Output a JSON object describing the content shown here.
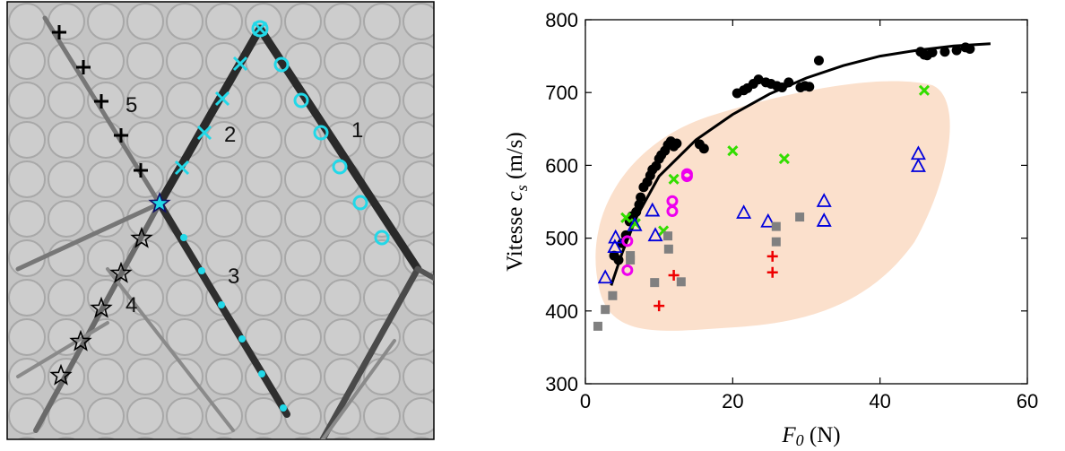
{
  "image_panel": {
    "labels": [
      "1",
      "2",
      "3",
      "4",
      "5"
    ]
  },
  "chart_data": {
    "type": "scatter",
    "y_label": {
      "text": "Vitesse ",
      "var": "c",
      "sub": "s",
      "unit": " (m/s)"
    },
    "x_label": {
      "var": "F",
      "sub": "0",
      "unit": " (N)"
    },
    "xlim": [
      0,
      60
    ],
    "xticks": [
      0,
      20,
      40,
      60
    ],
    "ylim": [
      300,
      800
    ],
    "yticks": [
      300,
      400,
      500,
      600,
      700,
      800
    ],
    "series": [
      {
        "marker": "line",
        "color": "#000000",
        "x": [
          3.5,
          5,
          7,
          10,
          15,
          20,
          25,
          30,
          35,
          40,
          45,
          50,
          55
        ],
        "values": [
          435,
          480,
          530,
          585,
          635,
          670,
          698,
          720,
          737,
          750,
          758,
          764,
          767
        ]
      },
      {
        "marker": "dot",
        "color": "#000000",
        "x": [
          3.9,
          4.5,
          5.0,
          5.5,
          6.0,
          6.3,
          6.9,
          7.3,
          7.5,
          7.9,
          8.4,
          8.8,
          9.1,
          9.6,
          10.0,
          10.3,
          10.8,
          11.2,
          11.6,
          12.0,
          12.4,
          15.5,
          16.1,
          20.6,
          21.5,
          22.0,
          22.8,
          23.5,
          24.5,
          25.2,
          26.0,
          26.7,
          27.6,
          29.2,
          29.8,
          30.4,
          31.7,
          45.5,
          46.0,
          46.4,
          47.1,
          48.8,
          50.4,
          51.6,
          52.2
        ],
        "values": [
          476,
          470,
          493,
          504,
          523,
          530,
          536,
          546,
          556,
          570,
          577,
          586,
          594,
          599,
          609,
          614,
          620,
          628,
          633,
          626,
          630,
          629,
          623,
          699,
          703,
          706,
          712,
          718,
          714,
          712,
          709,
          707,
          714,
          707,
          709,
          708,
          744,
          756,
          752,
          751,
          755,
          756,
          758,
          762,
          760
        ]
      },
      {
        "marker": "x",
        "color": "#33dd00",
        "x": [
          5.5,
          6.8,
          10.6,
          12.0,
          20.0,
          27.0,
          46.0
        ],
        "values": [
          528,
          520,
          510,
          581,
          620,
          609,
          703
        ]
      },
      {
        "marker": "triangle",
        "color": "#0000dd",
        "x": [
          2.7,
          4.1,
          4.0,
          6.7,
          9.1,
          9.5,
          21.5,
          24.8,
          32.4,
          32.4,
          45.2,
          45.2
        ],
        "values": [
          445,
          500,
          487,
          517,
          537,
          503,
          534,
          522,
          550,
          523,
          615,
          598
        ]
      },
      {
        "marker": "circle",
        "color": "#ee00ee",
        "x": [
          5.7,
          5.7,
          11.8,
          11.8,
          13.8,
          13.8
        ],
        "values": [
          496,
          456,
          551,
          537,
          588,
          585
        ]
      },
      {
        "marker": "plus",
        "color": "#ee0000",
        "x": [
          10.0,
          12.0,
          25.4,
          25.4
        ],
        "values": [
          407,
          449,
          475,
          453
        ]
      },
      {
        "marker": "square",
        "color": "#808080",
        "x": [
          1.7,
          2.7,
          3.7,
          6.1,
          6.1,
          9.4,
          11.2,
          11.3,
          13.0,
          25.9,
          25.9,
          29.1
        ],
        "values": [
          379,
          402,
          421,
          470,
          476,
          439,
          503,
          485,
          440,
          495,
          516,
          529
        ]
      }
    ]
  }
}
